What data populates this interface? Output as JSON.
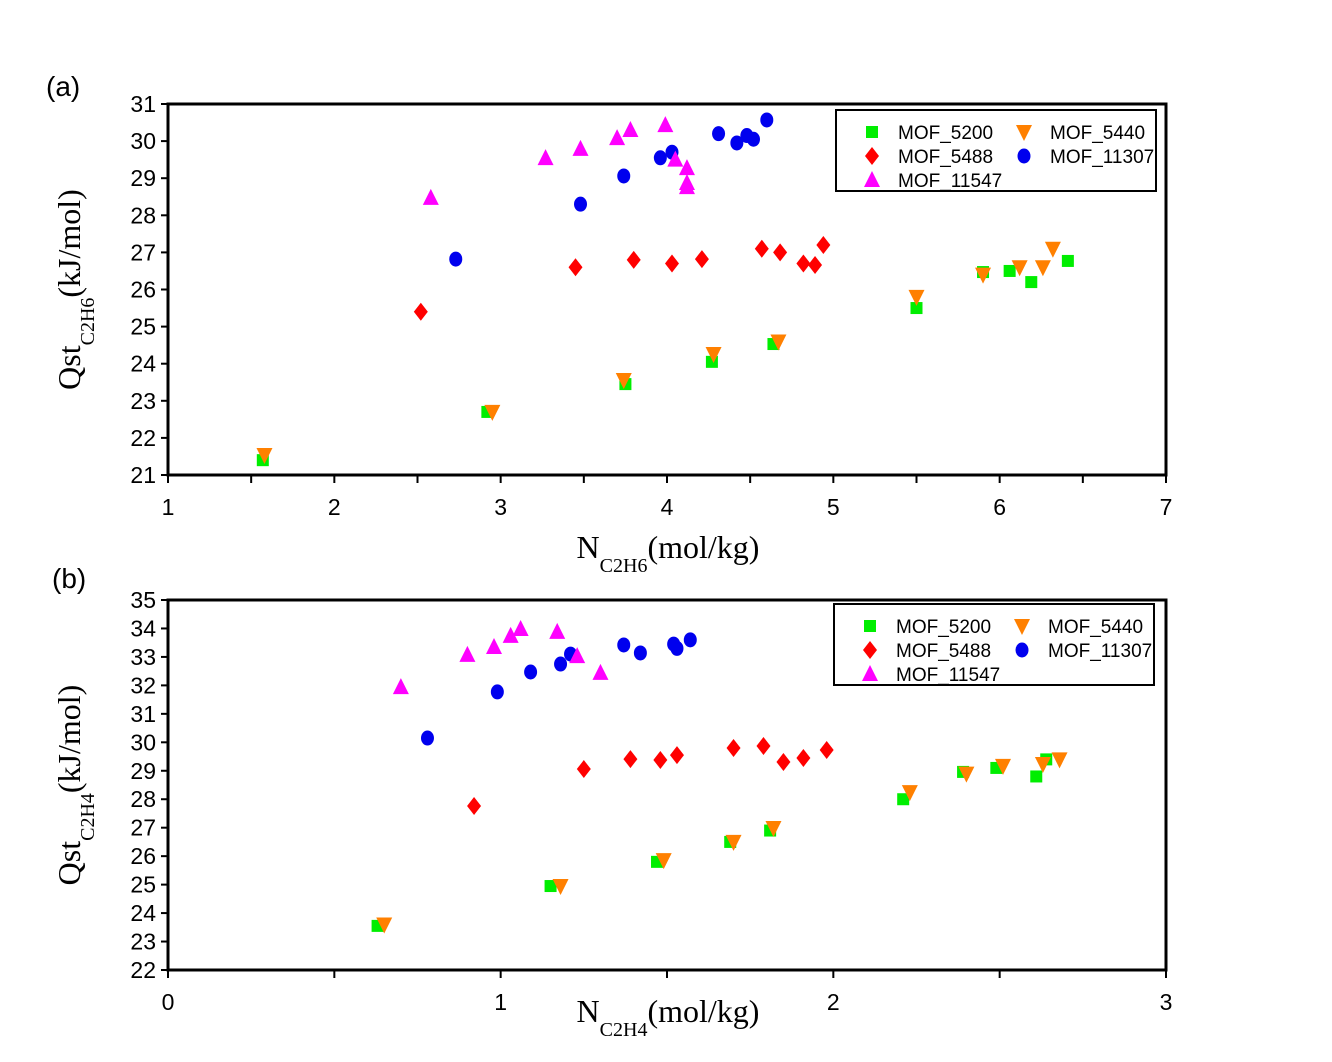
{
  "colors": {
    "MOF_5200": "#00ee00",
    "MOF_5440": "#ff8000",
    "MOF_5488": "#ff0000",
    "MOF_11307": "#0000ee",
    "MOF_11547": "#ff00ff"
  },
  "chart_data": [
    {
      "type": "scatter",
      "panel_label": "(a)",
      "xlabel_main": "N",
      "xlabel_sub": "C2H6",
      "xlabel_unit": "(mol/kg)",
      "ylabel_main": "Qst",
      "ylabel_sub": "C2H6",
      "ylabel_unit": "(kJ/mol)",
      "xlim": [
        1,
        7
      ],
      "ylim": [
        21,
        31
      ],
      "xticks": [
        1,
        2,
        3,
        4,
        5,
        6,
        7
      ],
      "yticks": [
        21,
        22,
        23,
        24,
        25,
        26,
        27,
        28,
        29,
        30,
        31
      ],
      "legend_position": "top-right",
      "series": [
        {
          "name": "MOF_5200",
          "marker": "square",
          "x": [
            1.57,
            2.92,
            3.75,
            4.27,
            4.64,
            5.5,
            5.9,
            6.06,
            6.19,
            6.41
          ],
          "y": [
            21.4,
            22.7,
            23.45,
            24.05,
            24.53,
            25.5,
            26.47,
            26.5,
            26.2,
            26.77
          ]
        },
        {
          "name": "MOF_5440",
          "marker": "triangle-down",
          "x": [
            1.58,
            2.95,
            3.74,
            4.28,
            4.67,
            5.5,
            5.9,
            6.12,
            6.26,
            6.32
          ],
          "y": [
            21.54,
            22.7,
            23.56,
            24.26,
            24.6,
            25.8,
            26.4,
            26.6,
            26.6,
            27.1
          ]
        },
        {
          "name": "MOF_5488",
          "marker": "diamond",
          "x": [
            2.52,
            3.45,
            3.8,
            4.03,
            4.21,
            4.57,
            4.68,
            4.82,
            4.89,
            4.94
          ],
          "y": [
            25.4,
            26.6,
            26.8,
            26.7,
            26.82,
            27.1,
            27.0,
            26.7,
            26.66,
            27.2
          ]
        },
        {
          "name": "MOF_11307",
          "marker": "circle",
          "x": [
            2.73,
            3.48,
            3.74,
            3.96,
            4.03,
            4.31,
            4.42,
            4.48,
            4.52,
            4.6
          ],
          "y": [
            26.82,
            28.3,
            29.06,
            29.55,
            29.7,
            30.2,
            29.95,
            30.15,
            30.05,
            30.57
          ]
        },
        {
          "name": "MOF_11547",
          "marker": "triangle-up",
          "x": [
            2.58,
            3.27,
            3.48,
            3.7,
            3.78,
            3.99,
            4.05,
            4.12,
            4.12,
            4.12
          ],
          "y": [
            28.47,
            29.54,
            29.79,
            30.08,
            30.3,
            30.43,
            29.5,
            29.27,
            28.87,
            28.76
          ]
        }
      ]
    },
    {
      "type": "scatter",
      "panel_label": "(b)",
      "xlabel_main": "N",
      "xlabel_sub": "C2H4",
      "xlabel_unit": "(mol/kg)",
      "ylabel_main": "Qst",
      "ylabel_sub": "C2H4",
      "ylabel_unit": "(kJ/mol)",
      "xlim": [
        0,
        3
      ],
      "ylim": [
        22,
        35
      ],
      "xticks": [
        0,
        1,
        2,
        3
      ],
      "yticks": [
        22,
        23,
        24,
        25,
        26,
        27,
        28,
        29,
        30,
        31,
        32,
        33,
        34,
        35
      ],
      "legend_position": "top-right",
      "series": [
        {
          "name": "MOF_5200",
          "marker": "square",
          "x": [
            0.63,
            1.15,
            1.47,
            1.69,
            1.81,
            2.21,
            2.39,
            2.49,
            2.61,
            2.64
          ],
          "y": [
            23.55,
            24.95,
            25.8,
            26.5,
            26.9,
            28.0,
            28.96,
            29.1,
            28.8,
            29.4
          ]
        },
        {
          "name": "MOF_5440",
          "marker": "triangle-down",
          "x": [
            0.65,
            1.18,
            1.49,
            1.7,
            1.82,
            2.23,
            2.4,
            2.51,
            2.63,
            2.68
          ],
          "y": [
            23.6,
            24.95,
            25.86,
            26.5,
            26.99,
            28.25,
            28.9,
            29.17,
            29.24,
            29.4
          ]
        },
        {
          "name": "MOF_5488",
          "marker": "diamond",
          "x": [
            0.92,
            1.25,
            1.39,
            1.48,
            1.53,
            1.7,
            1.79,
            1.85,
            1.91,
            1.98
          ],
          "y": [
            27.76,
            29.06,
            29.41,
            29.38,
            29.55,
            29.8,
            29.87,
            29.31,
            29.45,
            29.73
          ]
        },
        {
          "name": "MOF_11307",
          "marker": "circle",
          "x": [
            0.78,
            0.99,
            1.09,
            1.18,
            1.21,
            1.37,
            1.42,
            1.52,
            1.53,
            1.57
          ],
          "y": [
            30.15,
            31.77,
            32.47,
            32.75,
            33.1,
            33.42,
            33.14,
            33.45,
            33.3,
            33.6
          ]
        },
        {
          "name": "MOF_11547",
          "marker": "triangle-up",
          "x": [
            0.7,
            0.9,
            0.98,
            1.03,
            1.06,
            1.17,
            1.23,
            1.3
          ],
          "y": [
            31.94,
            33.07,
            33.35,
            33.74,
            33.98,
            33.88,
            33.03,
            32.44
          ]
        }
      ]
    }
  ]
}
